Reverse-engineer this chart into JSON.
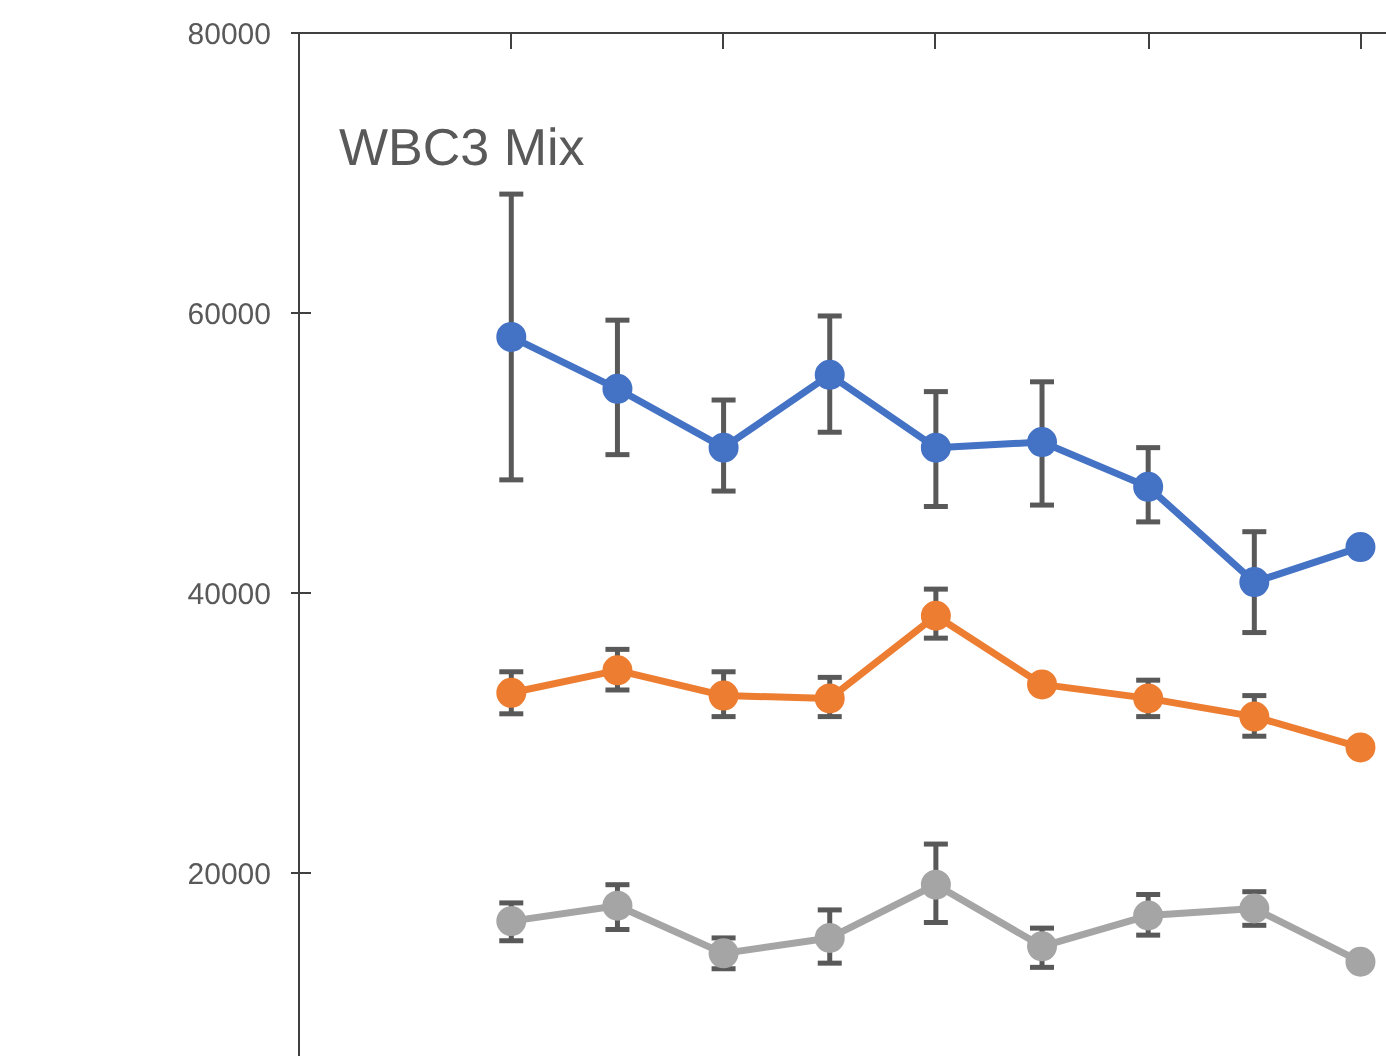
{
  "chart_data": {
    "type": "line",
    "title": "WBC3 Mix",
    "categories": [
      null,
      null,
      null,
      null,
      null,
      null,
      null,
      null,
      null
    ],
    "ylim": [
      6900,
      80000
    ],
    "yticks": [
      20000,
      40000,
      60000,
      80000
    ],
    "tick_labels": "y",
    "grid": false,
    "marker": "circle",
    "line_style": "solid",
    "series": [
      {
        "color": "#4472c4",
        "values": [
          58300,
          54600,
          50400,
          55600,
          50400,
          50800,
          47600,
          40800,
          43300
        ],
        "errors": [
          [
            48100,
            68500
          ],
          [
            49900,
            59500
          ],
          [
            47300,
            53800
          ],
          [
            51500,
            59800
          ],
          [
            46200,
            54400
          ],
          [
            46300,
            55100
          ],
          [
            45100,
            50400
          ],
          [
            37200,
            44400
          ],
          null
        ]
      },
      {
        "color": "#ed7d31",
        "values": [
          32900,
          34500,
          32700,
          32500,
          38400,
          33500,
          32500,
          31200,
          29000
        ],
        "errors": [
          [
            31400,
            34400
          ],
          [
            33100,
            36000
          ],
          [
            31200,
            34400
          ],
          [
            31200,
            34000
          ],
          [
            36800,
            40300
          ],
          null,
          [
            31200,
            33800
          ],
          [
            29800,
            32700
          ],
          null
        ]
      },
      {
        "color": "#a5a5a5",
        "values": [
          16600,
          17700,
          14300,
          15400,
          19200,
          14800,
          17000,
          17500,
          13700
        ],
        "errors": [
          [
            15200,
            17900
          ],
          [
            16000,
            19200
          ],
          [
            13200,
            15400
          ],
          [
            13600,
            17400
          ],
          [
            16500,
            22100
          ],
          [
            13300,
            16100
          ],
          [
            15600,
            18500
          ],
          [
            16300,
            18700
          ],
          null
        ]
      }
    ]
  }
}
